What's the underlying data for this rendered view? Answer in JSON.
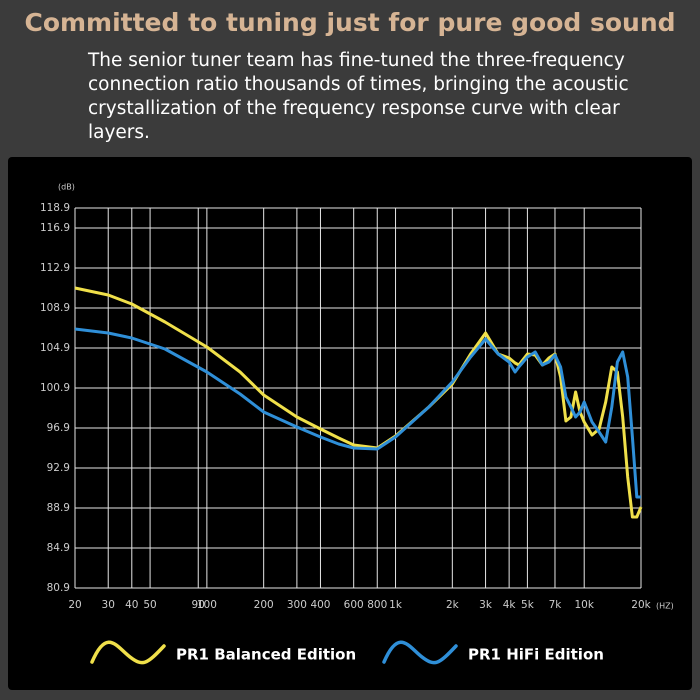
{
  "chart_data": {
    "type": "line",
    "title": "Committed to tuning just for pure good sound",
    "subtitle": "The senior tuner team has fine-tuned the three-frequency connection ratio thousands of times, bringing the acoustic crystallization of the frequency response curve with clear layers.",
    "y_label": "(dB)",
    "x_label": "(HZ)",
    "log_x": true,
    "grid": true,
    "xlim": [
      20,
      20000
    ],
    "ylim": [
      80.9,
      118.9
    ],
    "yticks": [
      80.9,
      84.9,
      88.9,
      92.9,
      96.9,
      100.9,
      104.9,
      108.9,
      112.9,
      116.9,
      118.9
    ],
    "xticks": [
      20,
      30,
      40,
      50,
      90,
      100,
      200,
      300,
      400,
      600,
      800,
      {
        "value": 1000,
        "label": "1k"
      },
      {
        "value": 2000,
        "label": "2k"
      },
      {
        "value": 3000,
        "label": "3k"
      },
      {
        "value": 4000,
        "label": "4k"
      },
      {
        "value": 5000,
        "label": "5k"
      },
      {
        "value": 7000,
        "label": "7k"
      },
      {
        "value": 10000,
        "label": "10k"
      },
      {
        "value": 20000,
        "label": "20k"
      }
    ],
    "x": [
      20,
      30,
      40,
      60,
      100,
      150,
      200,
      300,
      400,
      500,
      600,
      800,
      1000,
      1500,
      2000,
      2500,
      3000,
      3500,
      4000,
      4300,
      4500,
      5000,
      5500,
      6000,
      6500,
      7000,
      7500,
      8000,
      8500,
      9000,
      9500,
      10000,
      11000,
      12000,
      13000,
      14000,
      15000,
      16000,
      17000,
      18000,
      19000,
      20000
    ],
    "series": [
      {
        "name": "PR1 Balanced Edition",
        "color": "#f0e04a",
        "values": [
          110.9,
          110.2,
          109.3,
          107.5,
          105,
          102.5,
          100.2,
          98,
          96.8,
          95.9,
          95.2,
          94.9,
          96.1,
          99,
          101.3,
          104.3,
          106.4,
          104.3,
          103.9,
          103.4,
          103.2,
          104.3,
          104.2,
          103.2,
          103.9,
          104.3,
          102,
          97.6,
          98,
          100.5,
          98.5,
          97.5,
          96.2,
          96.8,
          99.5,
          103,
          102.5,
          98,
          92,
          88,
          88,
          89
        ]
      },
      {
        "name": "PR1 HiFi Edition",
        "color": "#2f8fd8",
        "values": [
          106.8,
          106.4,
          105.9,
          104.8,
          102.5,
          100.3,
          98.5,
          97,
          96,
          95.3,
          94.9,
          94.8,
          96,
          99,
          101.5,
          104,
          105.8,
          104.3,
          103.5,
          102.5,
          103,
          104,
          104.5,
          103.2,
          103.5,
          104.2,
          103,
          100,
          99,
          98,
          98.5,
          99.5,
          97.5,
          96.5,
          95.5,
          99,
          103.5,
          104.5,
          102,
          96,
          90,
          90
        ]
      }
    ]
  }
}
